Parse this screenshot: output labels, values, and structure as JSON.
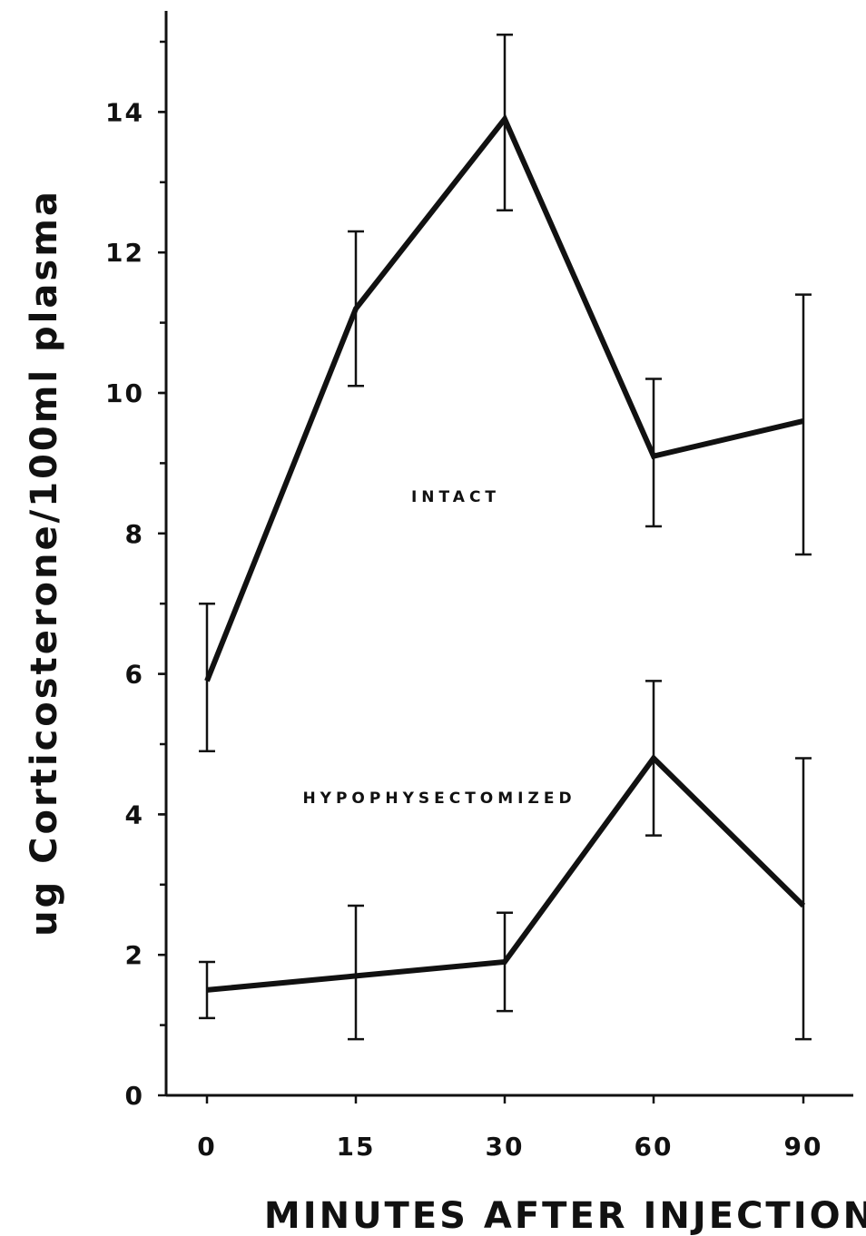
{
  "chart_data": {
    "type": "line",
    "title": "",
    "xlabel": "MINUTES AFTER INJECTION",
    "ylabel": "ug Corticosterone/100ml plasma",
    "categories": [
      "0",
      "15",
      "30",
      "60",
      "90"
    ],
    "y_tick_labels": [
      "0",
      "2",
      "4",
      "6",
      "8",
      "10",
      "12",
      "14"
    ],
    "ylim": [
      0,
      15.5
    ],
    "y_minor_step": 1,
    "grid": false,
    "legend": "none",
    "series": [
      {
        "name": "INTACT",
        "values": [
          5.9,
          11.2,
          13.9,
          9.1,
          9.6
        ],
        "err_low": [
          4.9,
          10.1,
          12.6,
          8.1,
          7.7
        ],
        "err_high": [
          7.0,
          12.3,
          15.1,
          10.2,
          11.4
        ]
      },
      {
        "name": "HYPOPHYSECTOMIZED",
        "values": [
          1.5,
          1.7,
          1.9,
          4.8,
          2.7
        ],
        "err_low": [
          1.1,
          0.8,
          1.2,
          3.7,
          0.8
        ],
        "err_high": [
          1.9,
          2.7,
          2.6,
          5.9,
          4.8
        ]
      }
    ]
  }
}
